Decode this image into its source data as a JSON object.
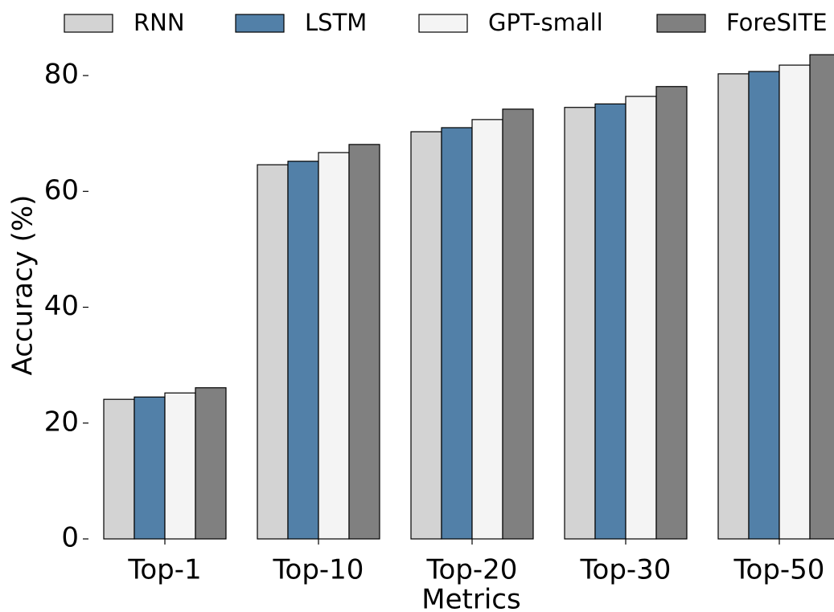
{
  "chart_data": {
    "type": "bar",
    "x_label": "Metrics",
    "y_label": "Accuracy (%)",
    "categories": [
      "Top-1",
      "Top-10",
      "Top-20",
      "Top-30",
      "Top-50"
    ],
    "series": [
      {
        "name": "RNN",
        "color": "#d3d3d3",
        "values": [
          24.1,
          64.6,
          70.3,
          74.5,
          80.3
        ]
      },
      {
        "name": "LSTM",
        "color": "#5280a8",
        "values": [
          24.5,
          65.2,
          71.0,
          75.1,
          80.7
        ]
      },
      {
        "name": "GPT-small",
        "color": "#f4f4f4",
        "values": [
          25.2,
          66.7,
          72.4,
          76.4,
          81.8
        ]
      },
      {
        "name": "ForeSITE",
        "color": "#808080",
        "values": [
          26.1,
          68.1,
          74.2,
          78.1,
          83.6
        ]
      }
    ],
    "ylim": [
      0,
      85
    ],
    "yticks": [
      0,
      20,
      40,
      60,
      80
    ],
    "grid": false,
    "legend": "top"
  }
}
